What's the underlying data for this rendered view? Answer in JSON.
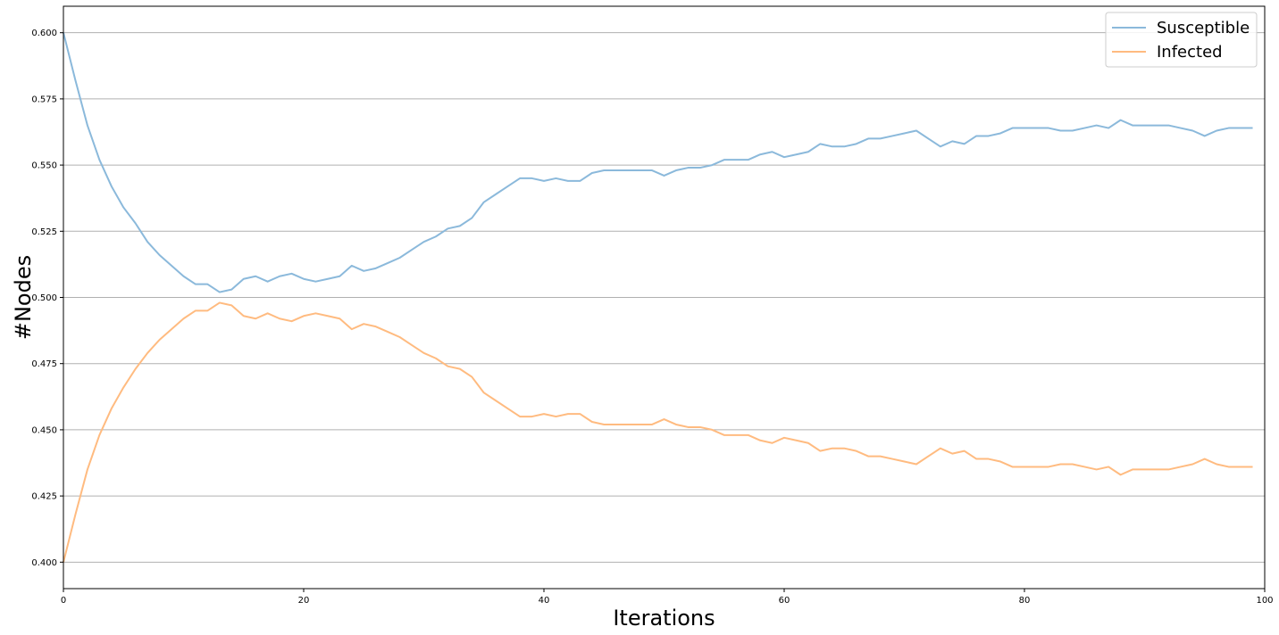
{
  "chart_data": {
    "type": "line",
    "title": "",
    "xlabel": "Iterations",
    "ylabel": "#Nodes",
    "xlim": [
      0,
      100
    ],
    "ylim": [
      0.39,
      0.61
    ],
    "xticks": [
      0,
      20,
      40,
      60,
      80,
      100
    ],
    "xtick_labels": [
      "0",
      "20",
      "40",
      "60",
      "80",
      "100"
    ],
    "yticks": [
      0.4,
      0.425,
      0.45,
      0.475,
      0.5,
      0.525,
      0.55,
      0.575,
      0.6
    ],
    "ytick_labels": [
      "0.400",
      "0.425",
      "0.450",
      "0.475",
      "0.500",
      "0.525",
      "0.550",
      "0.575",
      "0.600"
    ],
    "grid": "horizontal",
    "legend_position": "top-right",
    "x": [
      0,
      1,
      2,
      3,
      4,
      5,
      6,
      7,
      8,
      9,
      10,
      11,
      12,
      13,
      14,
      15,
      16,
      17,
      18,
      19,
      20,
      21,
      22,
      23,
      24,
      25,
      26,
      27,
      28,
      29,
      30,
      31,
      32,
      33,
      34,
      35,
      36,
      37,
      38,
      39,
      40,
      41,
      42,
      43,
      44,
      45,
      46,
      47,
      48,
      49,
      50,
      51,
      52,
      53,
      54,
      55,
      56,
      57,
      58,
      59,
      60,
      61,
      62,
      63,
      64,
      65,
      66,
      67,
      68,
      69,
      70,
      71,
      72,
      73,
      74,
      75,
      76,
      77,
      78,
      79,
      80,
      81,
      82,
      83,
      84,
      85,
      86,
      87,
      88,
      89,
      90,
      91,
      92,
      93,
      94,
      95,
      96,
      97,
      98,
      99
    ],
    "series": [
      {
        "name": "Susceptible",
        "color": "#8bb9db",
        "values": [
          0.6,
          0.582,
          0.565,
          0.552,
          0.542,
          0.534,
          0.528,
          0.521,
          0.516,
          0.512,
          0.508,
          0.505,
          0.505,
          0.502,
          0.503,
          0.507,
          0.508,
          0.506,
          0.508,
          0.509,
          0.507,
          0.506,
          0.507,
          0.508,
          0.512,
          0.51,
          0.511,
          0.513,
          0.515,
          0.518,
          0.521,
          0.523,
          0.526,
          0.527,
          0.53,
          0.536,
          0.539,
          0.542,
          0.545,
          0.545,
          0.544,
          0.545,
          0.544,
          0.544,
          0.547,
          0.548,
          0.548,
          0.548,
          0.548,
          0.548,
          0.546,
          0.548,
          0.549,
          0.549,
          0.55,
          0.552,
          0.552,
          0.552,
          0.554,
          0.555,
          0.553,
          0.554,
          0.555,
          0.558,
          0.557,
          0.557,
          0.558,
          0.56,
          0.56,
          0.561,
          0.562,
          0.563,
          0.56,
          0.557,
          0.559,
          0.558,
          0.561,
          0.561,
          0.562,
          0.564,
          0.564,
          0.564,
          0.564,
          0.563,
          0.563,
          0.564,
          0.565,
          0.564,
          0.567,
          0.565,
          0.565,
          0.565,
          0.565,
          0.564,
          0.563,
          0.561,
          0.563,
          0.564,
          0.564,
          0.564
        ]
      },
      {
        "name": "Infected",
        "color": "#ffbb80",
        "values": [
          0.4,
          0.418,
          0.435,
          0.448,
          0.458,
          0.466,
          0.473,
          0.479,
          0.484,
          0.488,
          0.492,
          0.495,
          0.495,
          0.498,
          0.497,
          0.493,
          0.492,
          0.494,
          0.492,
          0.491,
          0.493,
          0.494,
          0.493,
          0.492,
          0.488,
          0.49,
          0.489,
          0.487,
          0.485,
          0.482,
          0.479,
          0.477,
          0.474,
          0.473,
          0.47,
          0.464,
          0.461,
          0.458,
          0.455,
          0.455,
          0.456,
          0.455,
          0.456,
          0.456,
          0.453,
          0.452,
          0.452,
          0.452,
          0.452,
          0.452,
          0.454,
          0.452,
          0.451,
          0.451,
          0.45,
          0.448,
          0.448,
          0.448,
          0.446,
          0.445,
          0.447,
          0.446,
          0.445,
          0.442,
          0.443,
          0.443,
          0.442,
          0.44,
          0.44,
          0.439,
          0.438,
          0.437,
          0.44,
          0.443,
          0.441,
          0.442,
          0.439,
          0.439,
          0.438,
          0.436,
          0.436,
          0.436,
          0.436,
          0.437,
          0.437,
          0.436,
          0.435,
          0.436,
          0.433,
          0.435,
          0.435,
          0.435,
          0.435,
          0.436,
          0.437,
          0.439,
          0.437,
          0.436,
          0.436,
          0.436
        ]
      }
    ]
  }
}
